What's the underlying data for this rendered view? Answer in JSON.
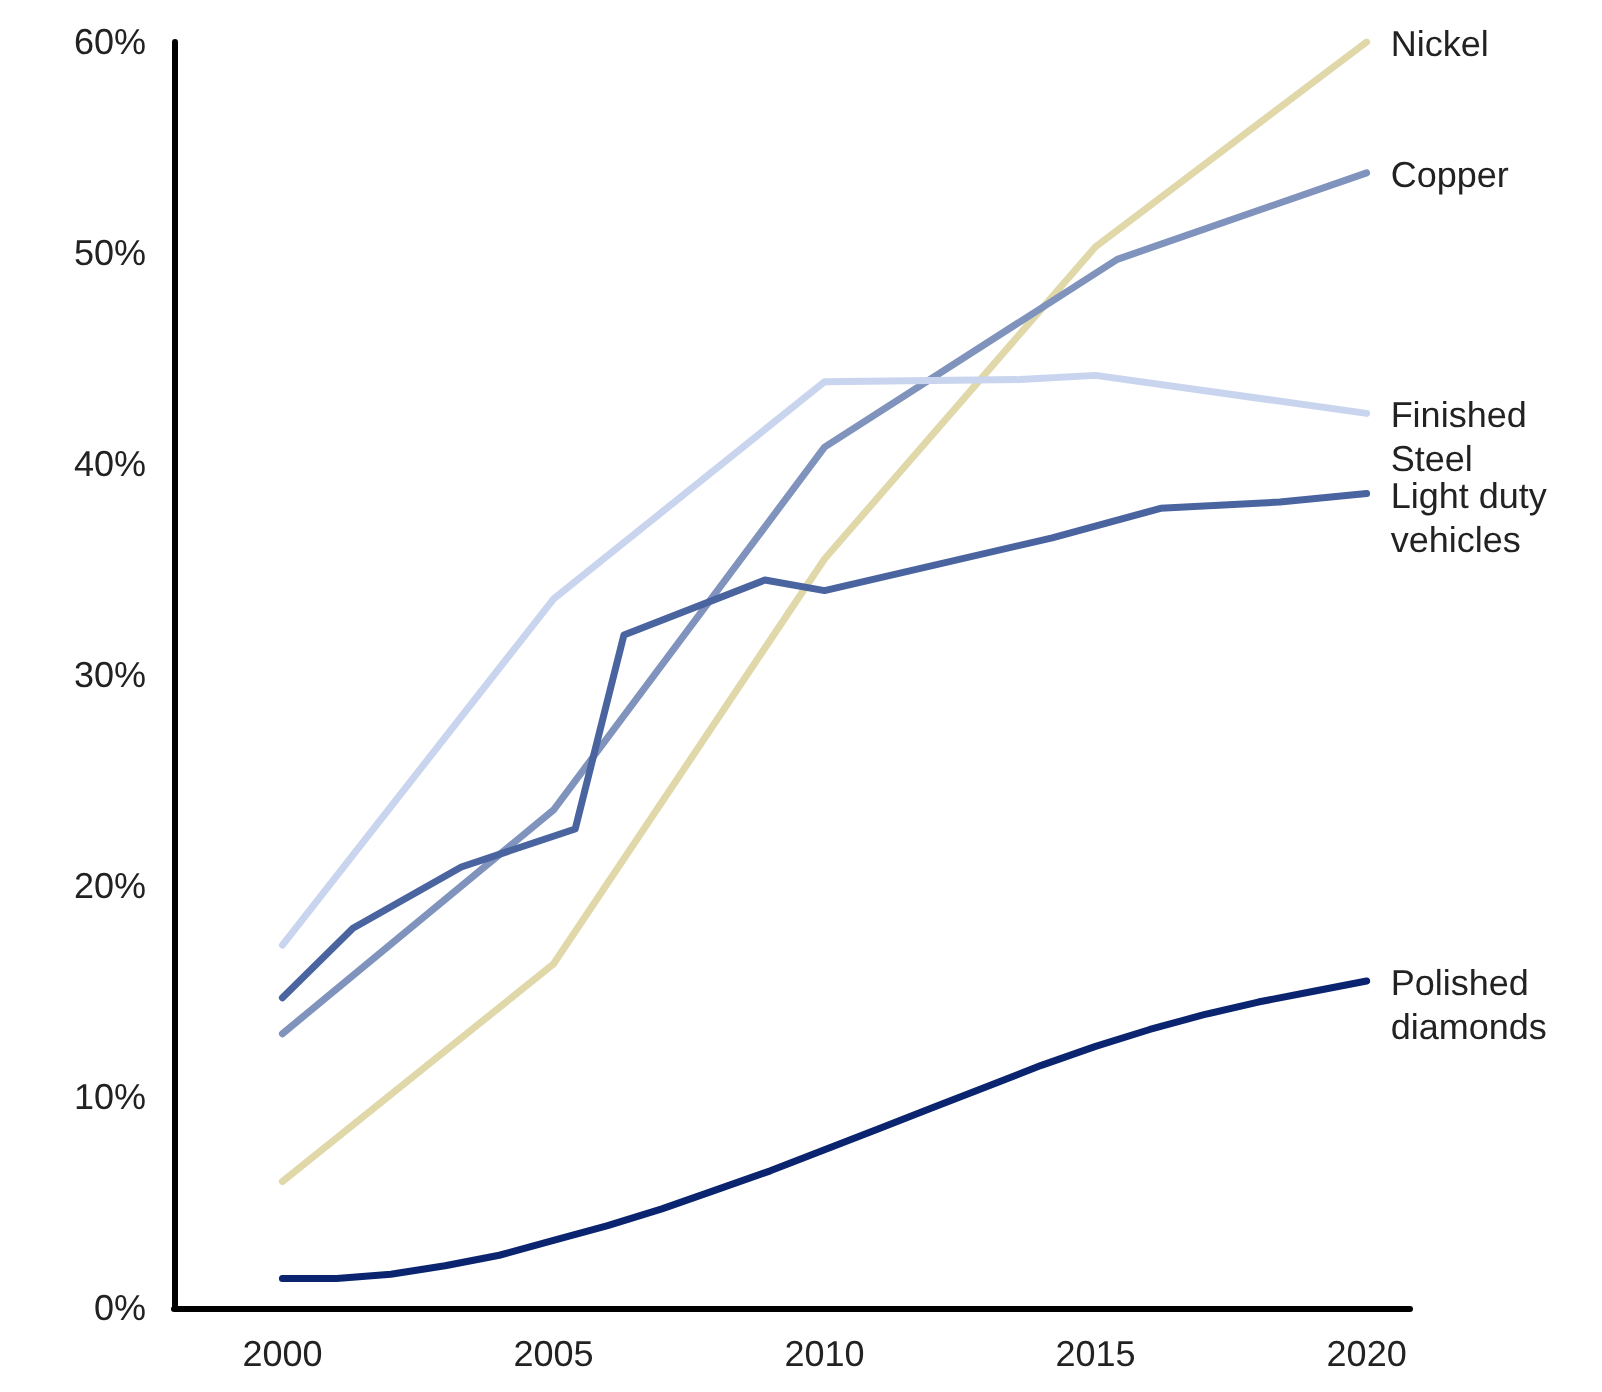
{
  "chart_data": {
    "type": "line",
    "xlim": [
      1998,
      2020.8
    ],
    "xticks": [
      2000,
      2005,
      2010,
      2015,
      2020
    ],
    "ylim": [
      0,
      60
    ],
    "yticks": [
      {
        "value": 0,
        "label": "0%"
      },
      {
        "value": 10,
        "label": "10%"
      },
      {
        "value": 20,
        "label": "20%"
      },
      {
        "value": 30,
        "label": "30%"
      },
      {
        "value": 40,
        "label": "40%"
      },
      {
        "value": 50,
        "label": "50%"
      },
      {
        "value": 60,
        "label": "60%"
      }
    ],
    "grid": false,
    "legend": false,
    "marker": "none",
    "line_style": "solid",
    "series": [
      {
        "name": "Nickel",
        "color": "#e0d8a8",
        "x": [
          2000,
          2005,
          2010,
          2015,
          2020
        ],
        "values": [
          6,
          16.3,
          35.5,
          50.3,
          60
        ]
      },
      {
        "name": "Copper",
        "color": "#7f93bd",
        "x": [
          2000,
          2005,
          2010,
          2015.4,
          2020
        ],
        "values": [
          13,
          23.6,
          40.8,
          49.7,
          53.8
        ]
      },
      {
        "name": "Finished Steel",
        "color": "#c9d4ee",
        "x": [
          2000,
          2005,
          2010,
          2013.6,
          2015,
          2020
        ],
        "values": [
          17.2,
          33.6,
          43.9,
          44,
          44.2,
          42.4
        ]
      },
      {
        "name": "Light duty vehicles",
        "color": "#4a64a0",
        "x": [
          2000,
          2001.3,
          2003.3,
          2005.4,
          2006.3,
          2008.9,
          2010,
          2014.2,
          2016.2,
          2018.4,
          2020
        ],
        "values": [
          14.7,
          18,
          20.9,
          22.7,
          31.9,
          34.5,
          34,
          36.5,
          37.9,
          38.2,
          38.6
        ]
      },
      {
        "name": "Polished diamonds",
        "color": "#0a2470",
        "x": [
          2000,
          2001,
          2002,
          2003,
          2004,
          2005,
          2006,
          2007,
          2008,
          2009,
          2010,
          2011,
          2012,
          2013,
          2014,
          2015,
          2016,
          2017,
          2018,
          2019,
          2020
        ],
        "values": [
          1.4,
          1.4,
          1.6,
          2,
          2.5,
          3.2,
          3.9,
          4.7,
          5.6,
          6.5,
          7.5,
          8.5,
          9.5,
          10.5,
          11.5,
          12.4,
          13.2,
          13.9,
          14.5,
          15,
          15.5
        ]
      }
    ]
  }
}
